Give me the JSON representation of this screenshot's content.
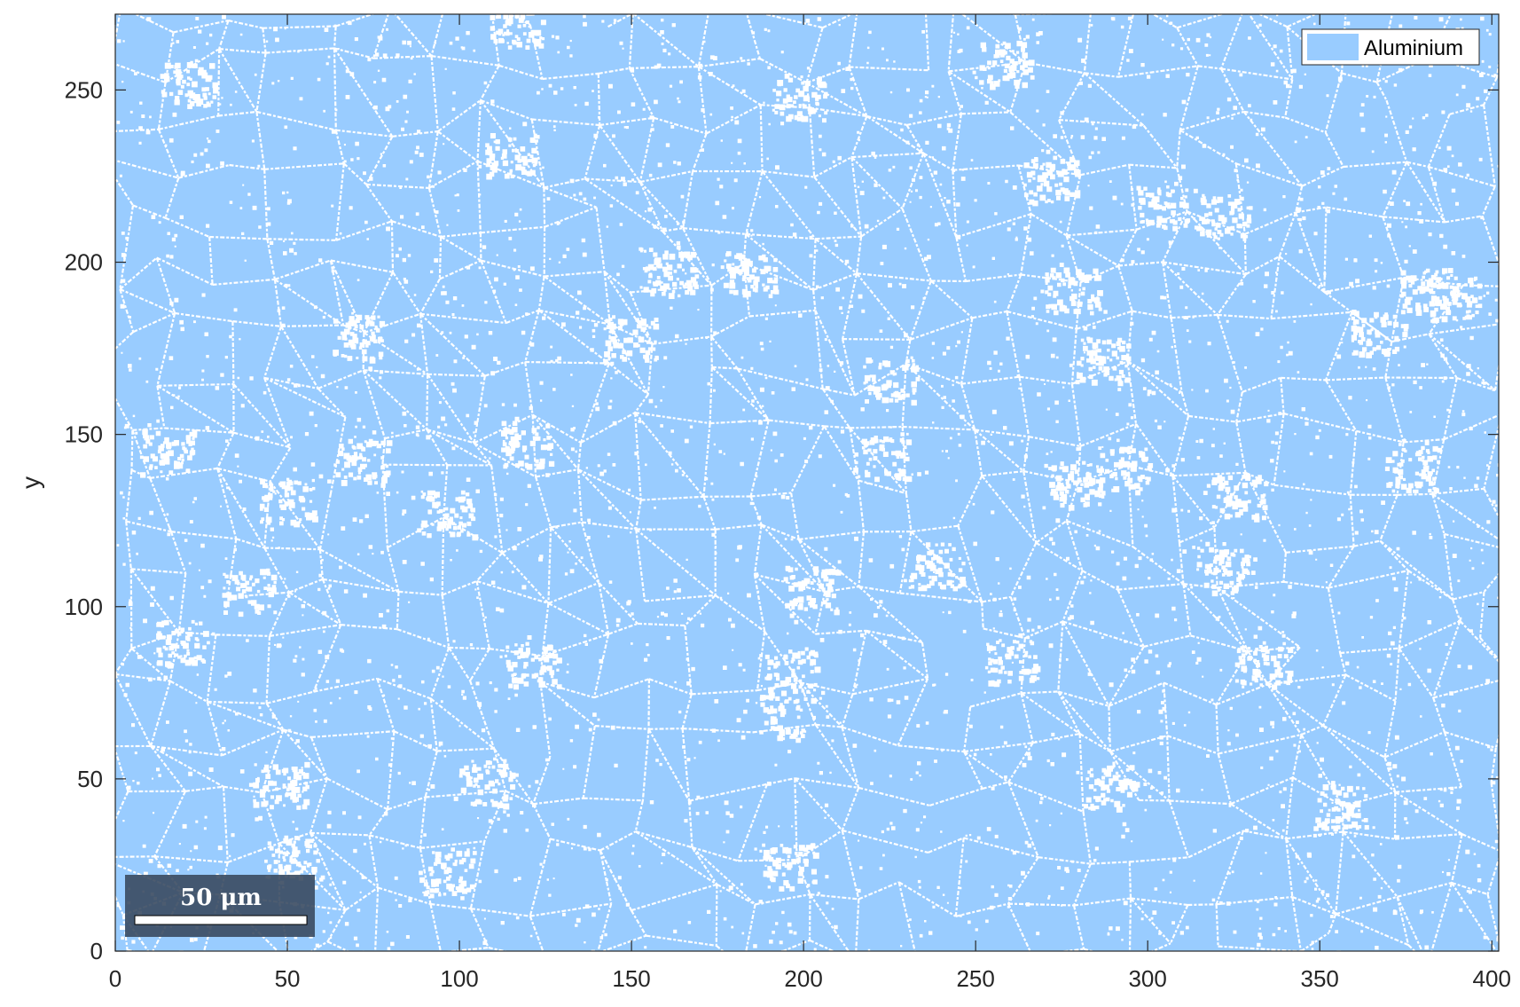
{
  "chart_data": {
    "type": "heatmap",
    "title": "",
    "xlabel": "",
    "ylabel": "y",
    "xlim": [
      0,
      402
    ],
    "ylim": [
      0,
      272
    ],
    "x_ticks": [
      0,
      50,
      100,
      150,
      200,
      250,
      300,
      350,
      400
    ],
    "y_ticks": [
      0,
      50,
      100,
      150,
      200,
      250
    ],
    "x_tick_labels": [
      "0",
      "50",
      "100",
      "150",
      "200",
      "250",
      "300",
      "350",
      "400"
    ],
    "y_tick_labels": [
      "0",
      "50",
      "100",
      "150",
      "200",
      "250"
    ],
    "grid": false,
    "legend": {
      "location": "top-right",
      "entries": [
        {
          "label": "Aluminium",
          "color": "#99ccff"
        }
      ]
    },
    "phases": [
      {
        "name": "Aluminium",
        "color": "#99ccff"
      },
      {
        "name": "",
        "color": "#ffffff"
      }
    ],
    "scalebar": {
      "label": "50 μm",
      "length": 50,
      "location": "bottom-left",
      "background": "#3a4a60"
    }
  }
}
